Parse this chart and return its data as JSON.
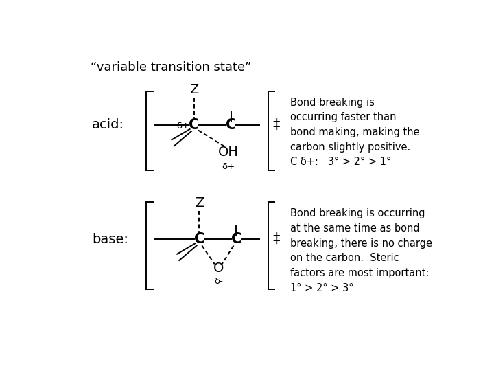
{
  "title": "“variable transition state”",
  "background_color": "#ffffff",
  "text_color": "#000000",
  "font_family": "DejaVu Sans",
  "title_fontsize": 13,
  "label_fontsize": 13,
  "chem_fontsize": 14,
  "body_fontsize": 10.5,
  "acid_label": "acid:",
  "base_label": "base:",
  "acid_text": "Bond breaking is\noccurring faster than\nbond making, making the\ncarbon slightly positive.\nC δ+:   3° > 2° > 1°",
  "base_text": "Bond breaking is occurring\nat the same time as bond\nbreaking, there is no charge\non the carbon.  Steric\nfactors are most important:\n1° > 2° > 3°"
}
